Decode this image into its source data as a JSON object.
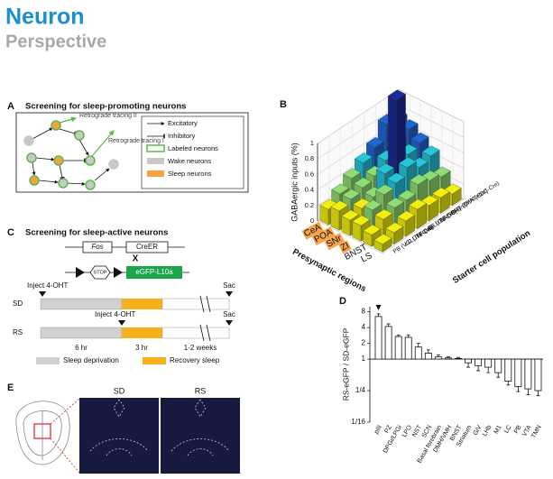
{
  "header": {
    "journal": "Neuron",
    "section": "Perspective"
  },
  "panel_a": {
    "label": "A",
    "title": "Screening for sleep-promoting neurons",
    "tracing_2": "Retrograde tracing II",
    "tracing_1": "Retrograde tracing I",
    "legend": [
      "Excitatory",
      "Inhibitory",
      "Labeled neurons",
      "Wake neurons",
      "Sleep neurons"
    ]
  },
  "panel_b_label": "B",
  "panel_c": {
    "label": "C",
    "title": "Screening for sleep-active neurons",
    "gene_1": "Fos",
    "gene_2": "CreER",
    "cross": "X",
    "stop": "STOP",
    "reporter": "eGFP-L10a",
    "sd": {
      "condition": "SD",
      "inject": "Inject 4-OHT",
      "sac": "Sac"
    },
    "rs": {
      "condition": "RS",
      "inject": "Inject 4-OHT",
      "sac": "Sac"
    },
    "durations": [
      "6 hr",
      "3 hr",
      "1-2 weeks"
    ],
    "legend": [
      "Sleep deprivation",
      "Recovery sleep"
    ]
  },
  "panel_d_label": "D",
  "panel_e": {
    "label": "E",
    "images": [
      "SD",
      "RS"
    ]
  },
  "chart_data": [
    {
      "type": "bar3d",
      "zlabel": "GABAergic inputs (%)",
      "xlabel": "Presynaptic regions",
      "ylabel": "Starter cell population",
      "categories": [
        "TMN (HDC-Cre)",
        "PPT (ChAT-Cre)",
        "BF (PV-Cre)",
        "BF (ChAT-Cre)",
        "BF (VGLUT2-Cre)",
        "LC (TH-Cre)",
        "PB (VGLUT2-Cre)"
      ],
      "series": [
        {
          "name": "CeA",
          "highlighted": true,
          "values": [
            0.75,
            0.8,
            0.6,
            0.5,
            0.4,
            0.3,
            0.2
          ]
        },
        {
          "name": "POA",
          "highlighted": true,
          "values": [
            0.7,
            0.65,
            0.5,
            0.4,
            0.35,
            0.3,
            0.25
          ]
        },
        {
          "name": "SNr",
          "highlighted": true,
          "values": [
            0.6,
            0.55,
            1.35,
            0.5,
            0.3,
            0.25,
            0.2
          ]
        },
        {
          "name": "ZI",
          "highlighted": true,
          "values": [
            0.5,
            0.45,
            0.55,
            0.45,
            0.4,
            0.3,
            0.2
          ]
        },
        {
          "name": "BNST",
          "highlighted": false,
          "values": [
            0.3,
            0.35,
            0.4,
            0.3,
            0.3,
            0.25,
            0.15
          ]
        },
        {
          "name": "LS",
          "highlighted": false,
          "values": [
            0.15,
            0.2,
            0.2,
            0.25,
            0.2,
            0.15,
            0.1
          ]
        }
      ],
      "zlim": [
        0,
        1
      ],
      "zticks": [
        0,
        0.2,
        0.4,
        0.6,
        0.8,
        1
      ],
      "colormap": {
        "stops": [
          0,
          0.3,
          0.45,
          0.6,
          0.9
        ],
        "colors": [
          "#f2ee10",
          "#8fdc72",
          "#25c6da",
          "#2066d2",
          "#1c2a98"
        ]
      },
      "highlight_color": "#f6a54c"
    },
    {
      "type": "bar",
      "ylabel": "RS-eGFP / SD-eGFP",
      "log_scale": true,
      "categories": [
        "pIII",
        "PZ",
        "DPGi/LPGi",
        "LPO",
        "NST",
        "SCN",
        "Basal forebrain",
        "DMH/VMH",
        "BNST",
        "Striatum",
        "GiV",
        "LHb",
        "M1",
        "LC",
        "PB",
        "VTA",
        "TMN"
      ],
      "values": [
        6.5,
        4.2,
        2.7,
        2.6,
        1.7,
        1.3,
        1.1,
        1.05,
        1.03,
        0.85,
        0.75,
        0.7,
        0.55,
        0.38,
        0.3,
        0.27,
        0.25
      ],
      "errors": [
        0.8,
        0.5,
        0.2,
        0.3,
        0.3,
        0.2,
        0.1,
        0.05,
        0.05,
        0.15,
        0.15,
        0.15,
        0.1,
        0.06,
        0.06,
        0.06,
        0.05
      ],
      "color": "#ffffff",
      "ylim": [
        0.0625,
        10
      ],
      "yticks": [
        8,
        4,
        2,
        1,
        {
          "value": 0.25,
          "label": "1/4"
        },
        {
          "value": 0.0625,
          "label": "1/16"
        }
      ]
    }
  ]
}
